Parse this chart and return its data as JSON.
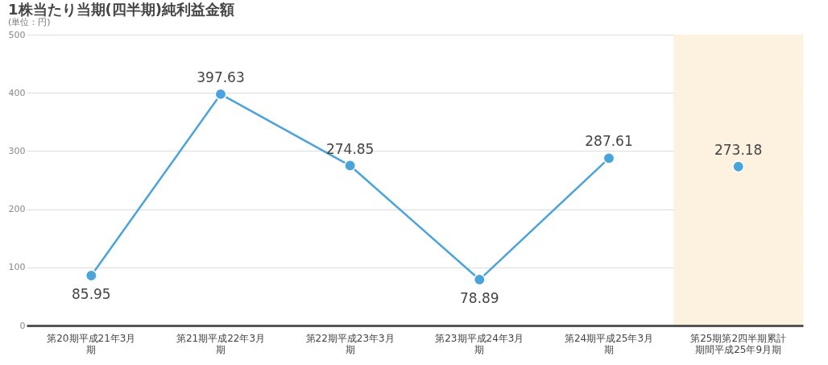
{
  "chart_data": {
    "type": "line",
    "title": "1株当たり当期(四半期)純利益金額",
    "annotations": [
      "(単位：円)"
    ],
    "categories": [
      "第20期平成21年3月期",
      "第21期平成22年3月期",
      "第22期平成23年3月期",
      "第23期平成24年3月期",
      "第24期平成25年3月期",
      "第25期第2四半期累計期間平成25年9月期"
    ],
    "series": [
      {
        "color": "#4ba3dc",
        "values": [
          85.95,
          397.63,
          274.85,
          78.89,
          287.61,
          null
        ]
      },
      {
        "type": "scatter",
        "color": "#4ba3dc",
        "values": [
          null,
          null,
          null,
          null,
          null,
          273.18
        ]
      }
    ],
    "bands": [
      {
        "axis": "x",
        "from": "第25期第2四半期累計期間平成25年9月期",
        "to": "第25期第2四半期累計期間平成25年9月期",
        "color": "#fdf1e0"
      }
    ],
    "ylim": [
      0,
      500
    ],
    "yticks": [
      0,
      100,
      200,
      300,
      400,
      500
    ],
    "grid": "y",
    "marker": "circle",
    "data_labels": true
  }
}
